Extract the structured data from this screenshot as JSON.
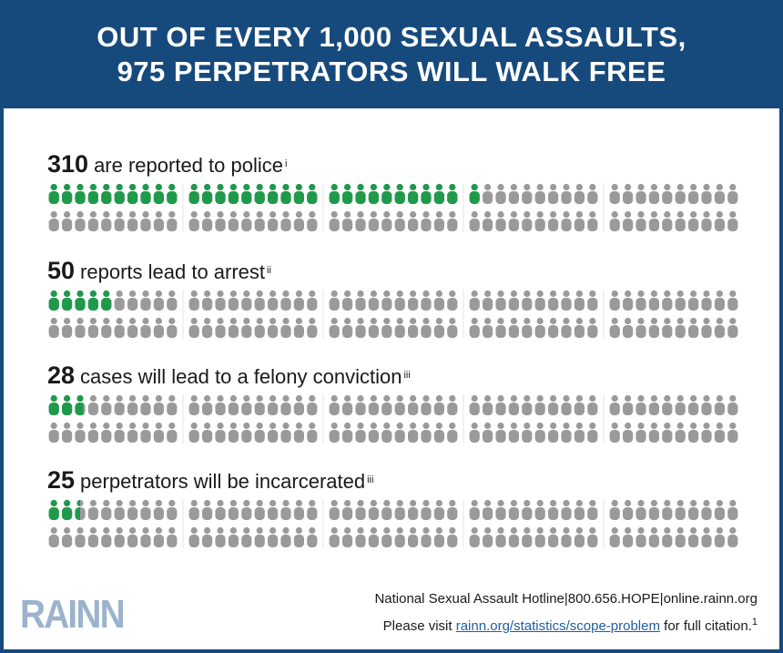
{
  "header": {
    "line1": "OUT OF EVERY 1,000 SEXUAL ASSAULTS,",
    "line2": "975 PERPETRATORS WILL WALK FREE"
  },
  "colors": {
    "header_bg": "#174a7c",
    "highlight": "#1f9a4b",
    "neutral": "#9a9a9a",
    "logo": "#9bb3cc",
    "link": "#1f5e9e"
  },
  "chart_data": {
    "type": "pictograph",
    "icons_per_row_group": 100,
    "rows": [
      {
        "value": 310,
        "label": "are reported to police",
        "note": "i",
        "highlighted_icons": 31
      },
      {
        "value": 50,
        "label": "reports lead to arrest",
        "note": "ii",
        "highlighted_icons": 5
      },
      {
        "value": 28,
        "label": "cases will lead to a felony conviction",
        "note": "iii",
        "highlighted_icons": 2.8
      },
      {
        "value": 25,
        "label": "perpetrators will be incarcerated",
        "note": "iii",
        "highlighted_icons": 2.5
      }
    ]
  },
  "footer": {
    "hotline": "National Sexual Assault Hotline|800.656.HOPE|online.rainn.org",
    "visit_prefix": "Please visit ",
    "link_text": "rainn.org/statistics/scope-problem",
    "visit_suffix": " for full citation.",
    "footnote": "1"
  },
  "logo": {
    "text": "RAINN"
  }
}
